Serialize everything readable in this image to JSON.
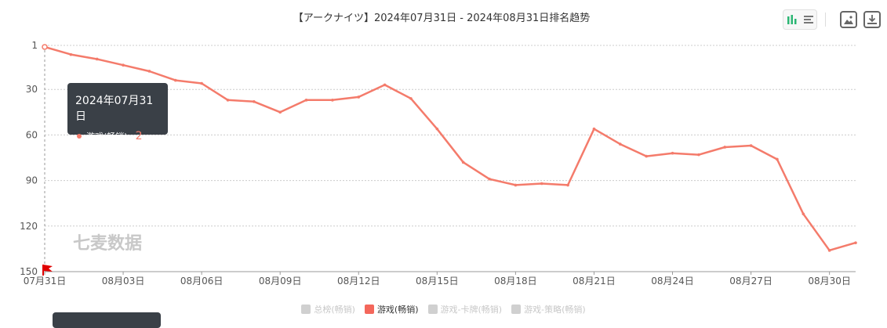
{
  "chart_data": {
    "type": "line",
    "title": "【アークナイツ】2024年07月31日 - 2024年08月31日排名趋势",
    "x": [
      "07月31日",
      "08月01日",
      "08月02日",
      "08月03日",
      "08月04日",
      "08月05日",
      "08月06日",
      "08月07日",
      "08月08日",
      "08月09日",
      "08月10日",
      "08月11日",
      "08月12日",
      "08月13日",
      "08月14日",
      "08月15日",
      "08月16日",
      "08月17日",
      "08月18日",
      "08月19日",
      "08月20日",
      "08月21日",
      "08月22日",
      "08月23日",
      "08月24日",
      "08月25日",
      "08月26日",
      "08月27日",
      "08月28日",
      "08月29日",
      "08月30日",
      "08月31日"
    ],
    "x_tick_labels": [
      "07月31日",
      "08月03日",
      "08月06日",
      "08月09日",
      "08月12日",
      "08月15日",
      "08月18日",
      "08月21日",
      "08月24日",
      "08月27日",
      "08月30日"
    ],
    "y_ticks": [
      1,
      30,
      60,
      90,
      120,
      150
    ],
    "ylim": [
      1,
      150
    ],
    "y_inverted": true,
    "grid": true,
    "series": [
      {
        "name": "游戏(畅销)",
        "color": "#f47b6b",
        "values": [
          2,
          7,
          10,
          14,
          18,
          24,
          26,
          37,
          38,
          45,
          37,
          37,
          35,
          27,
          36,
          56,
          78,
          89,
          93,
          92,
          93,
          56,
          66,
          74,
          72,
          73,
          68,
          67,
          76,
          112,
          136,
          131
        ]
      }
    ],
    "legend": [
      "总榜(畅销)",
      "游戏(畅销)",
      "游戏-卡牌(畅销)",
      "游戏-策略(畅销)"
    ],
    "legend_placement": "bottom",
    "active_legend": "游戏(畅销)"
  },
  "watermark": "七麦数据",
  "tooltip": {
    "date": "2024年07月31日",
    "series": "游戏(畅销)",
    "value": "2"
  },
  "toolbar": {
    "bar_icon": "bar-chart-icon",
    "list_icon": "list-icon",
    "image_icon": "image-icon",
    "download_icon": "download-icon"
  },
  "colors": {
    "line": "#f47b6b",
    "flag": "#e00000",
    "tooltip_bg": "#3a4047",
    "toggle_accent": "#2bb673"
  }
}
